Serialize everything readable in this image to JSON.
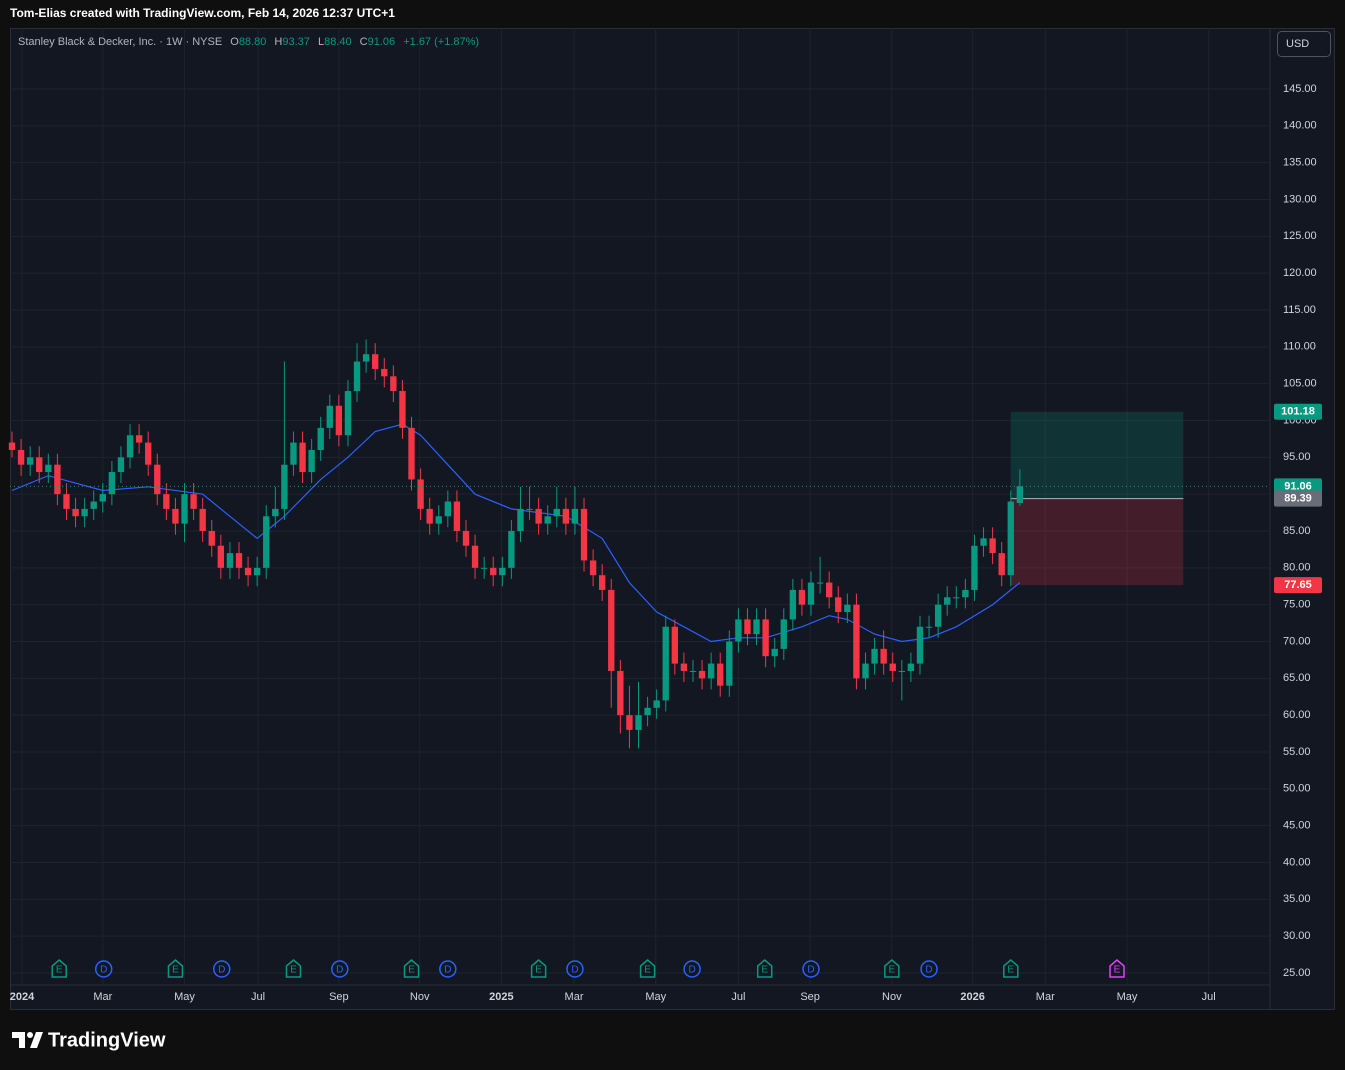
{
  "header": {
    "text": "Tom-Elias created with TradingView.com, Feb 14, 2026 12:37 UTC+1"
  },
  "footer": {
    "brand": "TradingView"
  },
  "chart_data": {
    "type": "candlestick",
    "legend": {
      "symbol": "Stanley Black & Decker, Inc. · 1W · NYSE",
      "o": "O",
      "open": "88.80",
      "h": "H",
      "high": "93.37",
      "l": "L",
      "low": "88.40",
      "c": "C",
      "close": "91.06",
      "change": "+1.67 (+1.87%)"
    },
    "currency": "USD",
    "up_color": "#089981",
    "down_color": "#f23645",
    "open": [
      97,
      96,
      94,
      95,
      93,
      94,
      90,
      88,
      87,
      88,
      89,
      90,
      93,
      95,
      98,
      97,
      94,
      90,
      88,
      86,
      90,
      88,
      85,
      83,
      80,
      82,
      80,
      79,
      80,
      87,
      88,
      94,
      97,
      93,
      96,
      99,
      102,
      98,
      104,
      108,
      109,
      107,
      106,
      104,
      99,
      92,
      88,
      86,
      87,
      89,
      85,
      83,
      80,
      80,
      79,
      80,
      85,
      88,
      88,
      86,
      87,
      88,
      86,
      88,
      81,
      79,
      77,
      66,
      60,
      58,
      60,
      61,
      62,
      72,
      67,
      66,
      66,
      65,
      67,
      64,
      70,
      73,
      71,
      73,
      68,
      69,
      73,
      77,
      75,
      78,
      78,
      76,
      74,
      75,
      65,
      67,
      69,
      67,
      66,
      66,
      67,
      72,
      72,
      75,
      76,
      76,
      77,
      83,
      84,
      82,
      79,
      88.8
    ],
    "high": [
      98.5,
      97.5,
      96.5,
      96.5,
      95.5,
      95.5,
      91.5,
      89.5,
      89.5,
      90.5,
      91.5,
      94.5,
      96.5,
      99.5,
      99.5,
      98.5,
      95.5,
      91.5,
      89.5,
      91.5,
      91.5,
      89.5,
      86.5,
      84.5,
      83.5,
      83.5,
      81.5,
      81.5,
      88.5,
      91,
      108,
      98.5,
      98.5,
      97.5,
      100.5,
      103.5,
      103.5,
      105.5,
      110.5,
      111,
      110.5,
      108.5,
      107.5,
      105.5,
      100.5,
      93.5,
      89.5,
      88.5,
      90.5,
      90.5,
      86.5,
      84.5,
      81.5,
      81.5,
      81.5,
      86.5,
      91,
      91,
      89.5,
      88.5,
      91,
      89.5,
      91,
      89.5,
      82.5,
      80.5,
      78.5,
      67.5,
      64,
      64.5,
      62.5,
      63.5,
      73.5,
      73,
      68.5,
      67.5,
      67.5,
      68.5,
      68.5,
      71.5,
      74.5,
      74.5,
      74.5,
      74.5,
      70.5,
      74.5,
      78.5,
      78.5,
      79.5,
      81.5,
      79.5,
      77.5,
      76.5,
      76.5,
      68.5,
      70.5,
      71.5,
      68.5,
      67.5,
      68.5,
      73.5,
      73.5,
      76.5,
      77.5,
      77.5,
      78.5,
      84.5,
      85.5,
      85.5,
      83.5,
      90.5,
      93.37
    ],
    "low": [
      95,
      92.5,
      92.5,
      91.5,
      91.5,
      88.5,
      86.5,
      85.5,
      85.5,
      86.5,
      87.5,
      88.5,
      91.5,
      93.5,
      95.5,
      92.5,
      88.5,
      86.5,
      84.5,
      83.5,
      86.5,
      83.5,
      81.5,
      78.5,
      78.5,
      78.5,
      77.5,
      77.5,
      78.5,
      85.5,
      86.5,
      92.5,
      91.5,
      91.5,
      94.5,
      97.5,
      96.5,
      96.5,
      102.5,
      106.5,
      105.5,
      104.5,
      102.5,
      97.5,
      90.5,
      86.5,
      84.5,
      84.5,
      85.5,
      83.5,
      81.5,
      78.5,
      78.5,
      77.5,
      77.5,
      78.5,
      83.5,
      86.5,
      84.5,
      84.5,
      85.5,
      84.5,
      84.5,
      79.5,
      77.5,
      75.5,
      61,
      57.5,
      55.5,
      55.5,
      58.5,
      59.5,
      60.5,
      65.5,
      64.5,
      64.5,
      63.5,
      63.5,
      62.5,
      62.5,
      68.5,
      69.5,
      69.5,
      66.5,
      66.5,
      67.5,
      71.5,
      73.5,
      73.5,
      76.5,
      74.5,
      72.5,
      72.5,
      63.5,
      63.5,
      65.5,
      65.5,
      64.5,
      62,
      64.5,
      65.5,
      70.5,
      70.5,
      73.5,
      74.5,
      74.5,
      75.5,
      81.5,
      80.5,
      77.5,
      77.5,
      88.4
    ],
    "close": [
      96,
      94,
      95,
      93,
      94,
      90,
      88,
      87,
      88,
      89,
      90,
      93,
      95,
      98,
      97,
      94,
      90,
      88,
      86,
      90,
      88,
      85,
      83,
      80,
      82,
      80,
      79,
      80,
      87,
      88,
      94,
      97,
      93,
      96,
      99,
      102,
      98,
      104,
      108,
      109,
      107,
      106,
      104,
      99,
      92,
      88,
      86,
      87,
      89,
      85,
      83,
      80,
      80,
      79,
      80,
      85,
      88,
      88,
      86,
      87,
      88,
      86,
      88,
      81,
      79,
      77,
      66,
      60,
      58,
      60,
      61,
      62,
      72,
      67,
      66,
      66,
      65,
      67,
      64,
      70,
      73,
      71,
      73,
      68,
      69,
      73,
      77,
      75,
      78,
      78,
      76,
      74,
      75,
      65,
      67,
      69,
      67,
      66,
      66,
      67,
      72,
      72,
      75,
      76,
      76,
      77,
      83,
      84,
      82,
      79,
      89,
      91.06
    ],
    "ma": {
      "color": "#2962ff",
      "x": [
        0,
        4,
        10,
        15,
        21,
        24,
        27,
        30,
        34,
        37,
        40,
        43,
        45,
        48,
        51,
        55,
        58,
        61,
        65,
        68,
        71,
        74,
        77,
        80,
        83,
        87,
        90,
        92,
        95,
        98,
        101,
        104,
        108,
        110,
        111
      ],
      "values": [
        90.5,
        92.5,
        90.5,
        91,
        90,
        87,
        84,
        87,
        92,
        95,
        98.5,
        99.5,
        98,
        94,
        90,
        88,
        87.5,
        87,
        84,
        78,
        74,
        72,
        70,
        70.5,
        70.5,
        72,
        73.5,
        73,
        71,
        70,
        70.5,
        72,
        75,
        77,
        78
      ]
    },
    "position": {
      "x": [
        110,
        129
      ],
      "take_profit": 101.18,
      "entry": 89.39,
      "stop": 77.65
    },
    "events": [
      {
        "x": 5.2,
        "label": "E",
        "color": "#089981"
      },
      {
        "x": 10.1,
        "label": "D",
        "color": "#2962ff"
      },
      {
        "x": 18,
        "label": "E",
        "color": "#089981"
      },
      {
        "x": 23.1,
        "label": "D",
        "color": "#2962ff"
      },
      {
        "x": 31,
        "label": "E",
        "color": "#089981"
      },
      {
        "x": 36.1,
        "label": "D",
        "color": "#2962ff"
      },
      {
        "x": 44,
        "label": "E",
        "color": "#089981"
      },
      {
        "x": 48,
        "label": "D",
        "color": "#2962ff"
      },
      {
        "x": 58,
        "label": "E",
        "color": "#089981"
      },
      {
        "x": 62,
        "label": "D",
        "color": "#2962ff"
      },
      {
        "x": 70,
        "label": "E",
        "color": "#089981"
      },
      {
        "x": 74.9,
        "label": "D",
        "color": "#2962ff"
      },
      {
        "x": 82.9,
        "label": "E",
        "color": "#089981"
      },
      {
        "x": 88,
        "label": "D",
        "color": "#2962ff"
      },
      {
        "x": 96.9,
        "label": "E",
        "color": "#089981"
      },
      {
        "x": 101,
        "label": "D",
        "color": "#2962ff"
      },
      {
        "x": 110,
        "label": "E",
        "color": "#089981"
      },
      {
        "x": 121.7,
        "label": "E",
        "color": "#e040fb"
      }
    ],
    "xlim": [
      -0.22,
      138.55
    ],
    "xticks": [
      {
        "value": 1.1,
        "label": "2024"
      },
      {
        "value": 10,
        "label": "Mar"
      },
      {
        "value": 19,
        "label": "May"
      },
      {
        "value": 27.1,
        "label": "Jul"
      },
      {
        "value": 36,
        "label": "Sep"
      },
      {
        "value": 44.9,
        "label": "Nov"
      },
      {
        "value": 53.9,
        "label": "2025"
      },
      {
        "value": 61.9,
        "label": "Mar"
      },
      {
        "value": 70.9,
        "label": "May"
      },
      {
        "value": 80,
        "label": "Jul"
      },
      {
        "value": 87.9,
        "label": "Sep"
      },
      {
        "value": 96.9,
        "label": "Nov"
      },
      {
        "value": 105.8,
        "label": "2026"
      },
      {
        "value": 113.8,
        "label": "Mar"
      },
      {
        "value": 122.8,
        "label": "May"
      },
      {
        "value": 131.8,
        "label": "Jul"
      }
    ],
    "ylim": [
      23.37,
      153.28
    ],
    "yticks": [
      {
        "value": 25,
        "label": "25.00"
      },
      {
        "value": 30,
        "label": "30.00"
      },
      {
        "value": 35,
        "label": "35.00"
      },
      {
        "value": 40,
        "label": "40.00"
      },
      {
        "value": 45,
        "label": "45.00"
      },
      {
        "value": 50,
        "label": "50.00"
      },
      {
        "value": 55,
        "label": "55.00"
      },
      {
        "value": 60,
        "label": "60.00"
      },
      {
        "value": 65,
        "label": "65.00"
      },
      {
        "value": 70,
        "label": "70.00"
      },
      {
        "value": 75,
        "label": "75.00"
      },
      {
        "value": 80,
        "label": "80.00"
      },
      {
        "value": 85,
        "label": "85.00"
      },
      {
        "value": 90,
        "label": "90.00"
      },
      {
        "value": 95,
        "label": "95.00"
      },
      {
        "value": 100,
        "label": "100.00"
      },
      {
        "value": 105,
        "label": "105.00"
      },
      {
        "value": 110,
        "label": "110.00"
      },
      {
        "value": 115,
        "label": "115.00"
      },
      {
        "value": 120,
        "label": "120.00"
      },
      {
        "value": 125,
        "label": "125.00"
      },
      {
        "value": 130,
        "label": "130.00"
      },
      {
        "value": 135,
        "label": "135.00"
      },
      {
        "value": 140,
        "label": "140.00"
      },
      {
        "value": 145,
        "label": "145.00"
      }
    ],
    "grid": true
  }
}
